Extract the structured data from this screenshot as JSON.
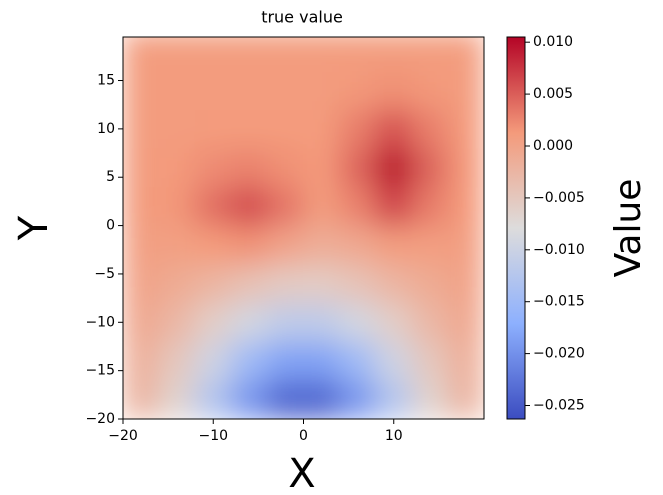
{
  "chart_data": {
    "type": "heatmap",
    "title": "true value",
    "x_label": "X",
    "y_label": "Y",
    "colorbar_label": "Value",
    "x": [
      -18,
      -14,
      -10,
      -6,
      -2,
      2,
      6,
      10,
      14,
      18
    ],
    "y": [
      -18,
      -14,
      -10,
      -6,
      -2,
      2,
      6,
      10,
      14,
      18
    ],
    "z": [
      [
        -0.0025,
        -0.0066,
        -0.0128,
        -0.0195,
        -0.0239,
        -0.0239,
        -0.0195,
        -0.0128,
        -0.0066,
        -0.0025
      ],
      [
        -0.0017,
        -0.005,
        -0.0097,
        -0.015,
        -0.0184,
        -0.0184,
        -0.015,
        -0.0097,
        -0.005,
        -0.0017
      ],
      [
        -0.0007,
        -0.0028,
        -0.0059,
        -0.0092,
        -0.0115,
        -0.0115,
        -0.0092,
        -0.0059,
        -0.0028,
        -0.0007
      ],
      [
        0.0001,
        -0.001,
        -0.0024,
        -0.0041,
        -0.0054,
        -0.0056,
        -0.0044,
        -0.0025,
        -0.001,
        0.0001
      ],
      [
        0.0006,
        0.0005,
        0.0012,
        0.0017,
        0.0,
        -0.0014,
        -0.0007,
        0.0009,
        0.0007,
        0.0006
      ],
      [
        0.001,
        0.0015,
        0.004,
        0.0061,
        0.0036,
        0.001,
        0.0028,
        0.0065,
        0.0032,
        0.0011
      ],
      [
        0.001,
        0.0013,
        0.0022,
        0.0028,
        0.0019,
        0.0013,
        0.0045,
        0.0098,
        0.0047,
        0.0013
      ],
      [
        0.001,
        0.001,
        0.0011,
        0.0011,
        0.0011,
        0.0011,
        0.003,
        0.0058,
        0.003,
        0.0011
      ],
      [
        0.001,
        0.001,
        0.001,
        0.001,
        0.001,
        0.001,
        0.0014,
        0.0019,
        0.0014,
        0.001
      ],
      [
        0.001,
        0.001,
        0.001,
        0.001,
        0.001,
        0.001,
        0.001,
        0.001,
        0.001,
        0.001
      ]
    ],
    "xlim": [
      -20,
      20
    ],
    "ylim": [
      -20,
      19.5
    ],
    "xticks": [
      {
        "value": -20,
        "label": "−20"
      },
      {
        "value": -10,
        "label": "−10"
      },
      0,
      10
    ],
    "yticks": [
      {
        "value": -20,
        "label": "−20"
      },
      {
        "value": -15,
        "label": "−15"
      },
      {
        "value": -10,
        "label": "−10"
      },
      {
        "value": -5,
        "label": "−5"
      },
      0,
      5,
      10,
      15
    ],
    "clim": [
      -0.0263,
      0.0105
    ],
    "colormap": [
      "#3b4cc0",
      "#8db0fe",
      "#dddcdc",
      "#f49a7b",
      "#b40426"
    ],
    "cticks": [
      {
        "value": 0.01,
        "label": "0.010"
      },
      {
        "value": 0.005,
        "label": "0.005"
      },
      {
        "value": 0,
        "label": "0.000"
      },
      {
        "value": -0.005,
        "label": "−0.005"
      },
      {
        "value": -0.01,
        "label": "−0.010"
      },
      {
        "value": -0.015,
        "label": "−0.015"
      },
      {
        "value": -0.02,
        "label": "−0.020"
      },
      {
        "value": -0.025,
        "label": "−0.025"
      }
    ]
  }
}
